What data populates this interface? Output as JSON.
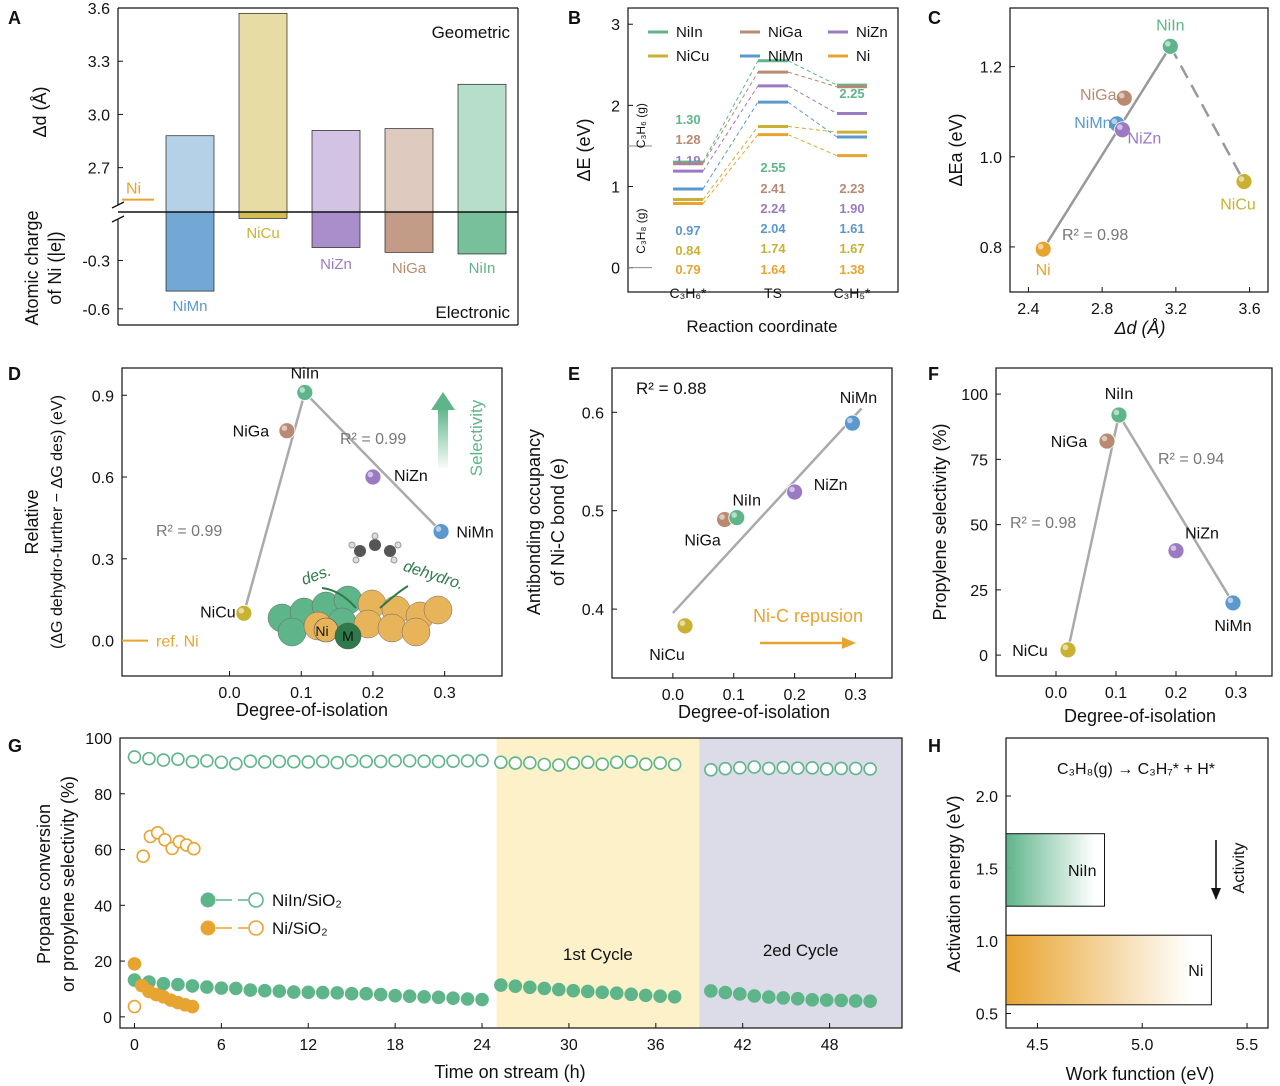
{
  "colors": {
    "NiIn": "#5fb58a",
    "NiGa": "#b98a72",
    "NiZn": "#9b7ac3",
    "NiCu": "#c9b233",
    "NiMn": "#5b98cd",
    "Ni": "#e8a430",
    "gray": "#a9a9a9",
    "cycle1": "#fdf1c9",
    "cycle2": "#dcdce8"
  },
  "chart_data": [
    {
      "id": "A",
      "type": "bar",
      "panel_label": "A",
      "categories": [
        "NiMn",
        "NiCu",
        "NiZn",
        "NiGa",
        "NiIn"
      ],
      "ref_label": "Ni",
      "top": {
        "annotation": "Geometric",
        "ylabel": "Δd (Å)",
        "ref_value": 2.52,
        "ylim": [
          2.45,
          3.6
        ],
        "ticks": [
          "2.7",
          "3.0",
          "3.3",
          "3.6"
        ],
        "tick_values": [
          2.7,
          3.0,
          3.3,
          3.6
        ],
        "values": [
          2.88,
          3.57,
          2.91,
          2.92,
          3.17
        ]
      },
      "bottom": {
        "annotation": "Electronic",
        "ylabel_line1": "Atomic charge",
        "ylabel_line2": "of Ni (|e|)",
        "ylim": [
          -0.7,
          0
        ],
        "ticks": [
          "-0.3",
          "-0.6"
        ],
        "tick_values": [
          -0.3,
          -0.6
        ],
        "values": [
          -0.49,
          -0.04,
          -0.22,
          -0.25,
          -0.26
        ]
      }
    },
    {
      "id": "B",
      "type": "line",
      "panel_label": "B",
      "title": "",
      "xlabel": "Reaction coordinate",
      "ylabel": "ΔE (eV)",
      "ylim": [
        -0.3,
        3.2
      ],
      "yticks": [
        "0",
        "1",
        "2",
        "3"
      ],
      "ytick_values": [
        0,
        1,
        2,
        3
      ],
      "stages": [
        "C₃H₆*",
        "TS",
        "C₃H₅*"
      ],
      "side_labels": [
        "C₃H₆ (g)",
        "C₃H₈ (g)"
      ],
      "side_values": [
        1.5,
        0
      ],
      "series": [
        {
          "name": "NiIn",
          "values": [
            1.3,
            2.55,
            2.25
          ],
          "labels": [
            "1.30",
            "2.55",
            "2.25"
          ]
        },
        {
          "name": "NiGa",
          "values": [
            1.28,
            2.41,
            2.23
          ],
          "labels": [
            "1.28",
            "2.41",
            "2.23"
          ]
        },
        {
          "name": "NiZn",
          "values": [
            1.19,
            2.24,
            1.9
          ],
          "labels": [
            "1.19",
            "2.24",
            "1.90"
          ]
        },
        {
          "name": "NiMn",
          "values": [
            0.97,
            2.04,
            1.61
          ],
          "labels": [
            "0.97",
            "2.04",
            "1.61"
          ]
        },
        {
          "name": "NiCu",
          "values": [
            0.84,
            1.74,
            1.67
          ],
          "labels": [
            "0.84",
            "1.74",
            "1.67"
          ]
        },
        {
          "name": "Ni",
          "values": [
            0.79,
            1.64,
            1.38
          ],
          "labels": [
            "0.79",
            "1.64",
            "1.38"
          ]
        }
      ]
    },
    {
      "id": "C",
      "type": "scatter",
      "panel_label": "C",
      "xlabel": "Δd (Å)",
      "ylabel": "ΔEa (eV)",
      "xlim": [
        2.3,
        3.7
      ],
      "ylim": [
        0.7,
        1.33
      ],
      "xticks": [
        "2.4",
        "2.8",
        "3.2",
        "3.6"
      ],
      "xtick_values": [
        2.4,
        2.8,
        3.2,
        3.6
      ],
      "yticks": [
        "0.8",
        "1.0",
        "1.2"
      ],
      "ytick_values": [
        0.8,
        1.0,
        1.2
      ],
      "annotation": "R² = 0.98",
      "points": [
        {
          "name": "Ni",
          "x": 2.48,
          "y": 0.795
        },
        {
          "name": "NiMn",
          "x": 2.88,
          "y": 1.073
        },
        {
          "name": "NiZn",
          "x": 2.91,
          "y": 1.06
        },
        {
          "name": "NiGa",
          "x": 2.92,
          "y": 1.13
        },
        {
          "name": "NiIn",
          "x": 3.17,
          "y": 1.245
        },
        {
          "name": "NiCu",
          "x": 3.57,
          "y": 0.945
        }
      ]
    },
    {
      "id": "D",
      "type": "scatter",
      "panel_label": "D",
      "xlabel": "Degree-of-isolation",
      "ylabel_line1": "Relative",
      "ylabel_line2": "(ΔG dehydro-further − ΔG des) (eV)",
      "xlim": [
        -0.15,
        0.38
      ],
      "ylim": [
        -0.13,
        1.0
      ],
      "xticks": [
        "0.0",
        "0.1",
        "0.2",
        "0.3"
      ],
      "xtick_values": [
        0.0,
        0.1,
        0.2,
        0.3
      ],
      "yticks": [
        "0.0",
        "0.3",
        "0.6",
        "0.9"
      ],
      "ytick_values": [
        0.0,
        0.3,
        0.6,
        0.9
      ],
      "annotations": [
        "R² = 0.99",
        "R² = 0.99",
        "ref. Ni",
        "Selectivity",
        "des.",
        "dehydro.",
        "Ni",
        "M"
      ],
      "points": [
        {
          "name": "NiCu",
          "x": 0.02,
          "y": 0.1
        },
        {
          "name": "NiGa",
          "x": 0.08,
          "y": 0.77
        },
        {
          "name": "NiIn",
          "x": 0.105,
          "y": 0.91
        },
        {
          "name": "NiZn",
          "x": 0.2,
          "y": 0.6
        },
        {
          "name": "NiMn",
          "x": 0.295,
          "y": 0.4
        }
      ]
    },
    {
      "id": "E",
      "type": "scatter",
      "panel_label": "E",
      "xlabel": "Degree-of-isolation",
      "ylabel_line1": "Antibonding occupancy",
      "ylabel_line2": "of Ni-C bond (e)",
      "xlim": [
        -0.1,
        0.36
      ],
      "ylim": [
        0.33,
        0.645
      ],
      "xticks": [
        "0.0",
        "0.1",
        "0.2",
        "0.3"
      ],
      "xtick_values": [
        0.0,
        0.1,
        0.2,
        0.3
      ],
      "yticks": [
        "0.4",
        "0.5",
        "0.6"
      ],
      "ytick_values": [
        0.4,
        0.5,
        0.6
      ],
      "annotation": "R² = 0.88",
      "arrow_label": "Ni-C repusion",
      "points": [
        {
          "name": "NiCu",
          "x": 0.02,
          "y": 0.383
        },
        {
          "name": "NiGa",
          "x": 0.085,
          "y": 0.491
        },
        {
          "name": "NiIn",
          "x": 0.105,
          "y": 0.493
        },
        {
          "name": "NiZn",
          "x": 0.2,
          "y": 0.519
        },
        {
          "name": "NiMn",
          "x": 0.295,
          "y": 0.589
        }
      ]
    },
    {
      "id": "F",
      "type": "scatter",
      "panel_label": "F",
      "xlabel": "Degree-of-isolation",
      "ylabel": "Propylene selectivity (%)",
      "xlim": [
        -0.1,
        0.36
      ],
      "ylim": [
        -8,
        110
      ],
      "xticks": [
        "0.0",
        "0.1",
        "0.2",
        "0.3"
      ],
      "xtick_values": [
        0.0,
        0.1,
        0.2,
        0.3
      ],
      "yticks": [
        "0",
        "25",
        "50",
        "75",
        "100"
      ],
      "ytick_values": [
        0,
        25,
        50,
        75,
        100
      ],
      "annotations": [
        "R² = 0.98",
        "R² = 0.94"
      ],
      "points": [
        {
          "name": "NiCu",
          "x": 0.02,
          "y": 2
        },
        {
          "name": "NiGa",
          "x": 0.085,
          "y": 82
        },
        {
          "name": "NiIn",
          "x": 0.105,
          "y": 92
        },
        {
          "name": "NiZn",
          "x": 0.2,
          "y": 40
        },
        {
          "name": "NiMn",
          "x": 0.295,
          "y": 20
        }
      ]
    },
    {
      "id": "G",
      "type": "scatter",
      "panel_label": "G",
      "xlabel": "Time on stream (h)",
      "ylabel_line1": "Propane conversion",
      "ylabel_line2": "or propylene selectivity (%)",
      "xlim": [
        -1,
        53
      ],
      "ylim": [
        -4,
        100
      ],
      "xticks": [
        "0",
        "6",
        "12",
        "18",
        "24",
        "30",
        "36",
        "42",
        "48"
      ],
      "xtick_values": [
        0,
        6,
        12,
        18,
        24,
        30,
        36,
        42,
        48
      ],
      "yticks": [
        "0",
        "20",
        "40",
        "60",
        "80",
        "100"
      ],
      "ytick_values": [
        0,
        20,
        40,
        60,
        80,
        100
      ],
      "regions": [
        {
          "label": "1st Cycle",
          "x0": 25,
          "x1": 39
        },
        {
          "label": "2ed Cycle",
          "x0": 39,
          "x1": 53
        }
      ],
      "legend": [
        "NiIn/SiO₂",
        "Ni/SiO₂"
      ],
      "series": [
        {
          "name": "NiIn/SiO₂ selectivity",
          "style": "open",
          "x": [
            0,
            1,
            2,
            3,
            4,
            5,
            6,
            7,
            8,
            9,
            10,
            11,
            12,
            13,
            14,
            15,
            16,
            17,
            18,
            19,
            20,
            21,
            22,
            23,
            24,
            25.3,
            26.3,
            27.3,
            28.3,
            29.3,
            30.3,
            31.3,
            32.3,
            33.3,
            34.3,
            35.3,
            36.3,
            37.3,
            39.8,
            40.8,
            41.8,
            42.8,
            43.8,
            44.8,
            45.8,
            46.8,
            47.8,
            48.8,
            49.8,
            50.8
          ],
          "values": [
            93.2,
            92.6,
            92.1,
            92.4,
            91.5,
            91.8,
            91.3,
            90.8,
            91.7,
            91.4,
            91.6,
            91.5,
            91.4,
            91.6,
            91.2,
            91.8,
            91.6,
            91.6,
            91.8,
            91.8,
            91.7,
            91.6,
            91.7,
            91.8,
            91.9,
            91.3,
            91.0,
            91.1,
            90.5,
            90.3,
            91.0,
            91.3,
            90.6,
            91.3,
            91.5,
            90.6,
            91.0,
            90.5,
            88.6,
            89.0,
            89.3,
            89.6,
            89.1,
            89.4,
            89.2,
            89.3,
            88.9,
            89.1,
            89.1,
            88.9
          ]
        },
        {
          "name": "NiIn/SiO₂ conversion",
          "style": "filled",
          "x": [
            0,
            1,
            2,
            3,
            4,
            5,
            6,
            7,
            8,
            9,
            10,
            11,
            12,
            13,
            14,
            15,
            16,
            17,
            18,
            19,
            20,
            21,
            22,
            23,
            24,
            25.3,
            26.3,
            27.3,
            28.3,
            29.3,
            30.3,
            31.3,
            32.3,
            33.3,
            34.3,
            35.3,
            36.3,
            37.3,
            39.8,
            40.8,
            41.8,
            42.8,
            43.8,
            44.8,
            45.8,
            46.8,
            47.8,
            48.8,
            49.8,
            50.8
          ],
          "values": [
            13.2,
            12.5,
            11.9,
            11.6,
            11.1,
            10.7,
            10.3,
            10.2,
            9.6,
            9.4,
            9.2,
            8.9,
            8.8,
            8.7,
            8.6,
            8.3,
            8.3,
            8.0,
            7.6,
            7.4,
            7.2,
            7.0,
            6.7,
            6.4,
            6.2,
            11.4,
            11.0,
            10.6,
            10.2,
            9.8,
            9.4,
            9.1,
            8.8,
            8.5,
            8.1,
            7.7,
            7.4,
            7.2,
            9.3,
            8.7,
            8.2,
            7.5,
            7.1,
            6.8,
            6.5,
            6.1,
            6.0,
            5.9,
            5.7,
            5.6
          ]
        },
        {
          "name": "Ni/SiO₂ selectivity",
          "style": "open",
          "x": [
            0,
            0.6,
            1.1,
            1.6,
            2.1,
            2.6,
            3.1,
            3.6,
            4.1
          ],
          "values": [
            3.7,
            57.6,
            64.7,
            66.0,
            63.5,
            60.4,
            62.8,
            61.6,
            60.3
          ]
        },
        {
          "name": "Ni/SiO₂ conversion",
          "style": "filled",
          "x": [
            0,
            0.5,
            1.0,
            1.5,
            2.0,
            2.5,
            3.0,
            3.5,
            4.0
          ],
          "values": [
            19.0,
            11.2,
            9.1,
            8.0,
            7.2,
            6.0,
            5.1,
            4.3,
            3.7
          ]
        }
      ]
    },
    {
      "id": "H",
      "type": "bar",
      "panel_label": "H",
      "title": "C₃H₈(g) → C₃H₇* + H*",
      "xlabel": "Work function (eV)",
      "ylabel": "Activation energy (eV)",
      "xlim": [
        4.35,
        5.6
      ],
      "ylim": [
        0.4,
        2.4
      ],
      "xticks": [
        "4.5",
        "5.0",
        "5.5"
      ],
      "xtick_values": [
        4.5,
        5.0,
        5.5
      ],
      "yticks": [
        "0.5",
        "1.0",
        "1.5",
        "2.0"
      ],
      "ytick_values": [
        0.5,
        1.0,
        1.5,
        2.0
      ],
      "arrow_label": "Activity",
      "bars": [
        {
          "name": "NiIn",
          "x0": 4.35,
          "x1": 4.82,
          "y0": 1.24,
          "y1": 1.74
        },
        {
          "name": "Ni",
          "x0": 4.35,
          "x1": 5.33,
          "y0": 0.56,
          "y1": 1.04
        }
      ]
    }
  ]
}
